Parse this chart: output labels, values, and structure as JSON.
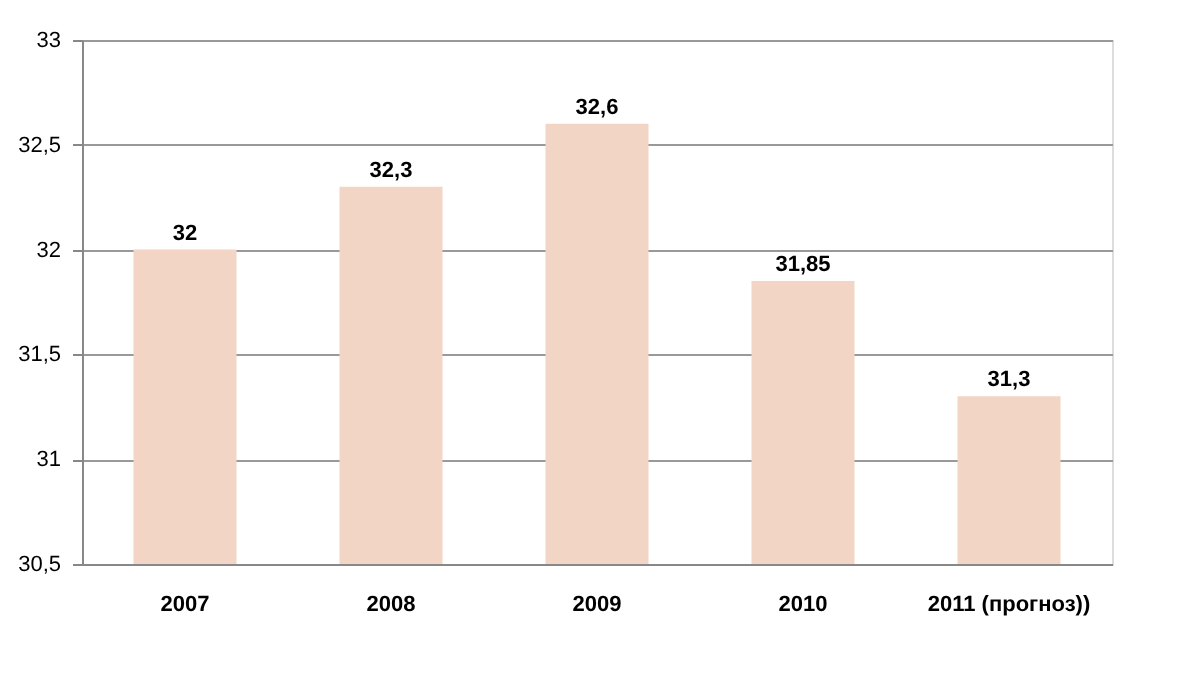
{
  "chart_data": {
    "type": "bar",
    "categories": [
      "2007",
      "2008",
      "2009",
      "2010",
      "2011 (прогноз))"
    ],
    "values": [
      32,
      32.3,
      32.6,
      31.85,
      31.3
    ],
    "value_labels": [
      "32",
      "32,3",
      "32,6",
      "31,85",
      "31,3"
    ],
    "color": "#f2d5c4",
    "ylim": [
      30.5,
      33
    ],
    "yticks": [
      {
        "value": 30.5,
        "label": "30,5"
      },
      31,
      {
        "value": 31.5,
        "label": "31,5"
      },
      32,
      {
        "value": 32.5,
        "label": "32,5"
      },
      33
    ],
    "grid": "y"
  }
}
